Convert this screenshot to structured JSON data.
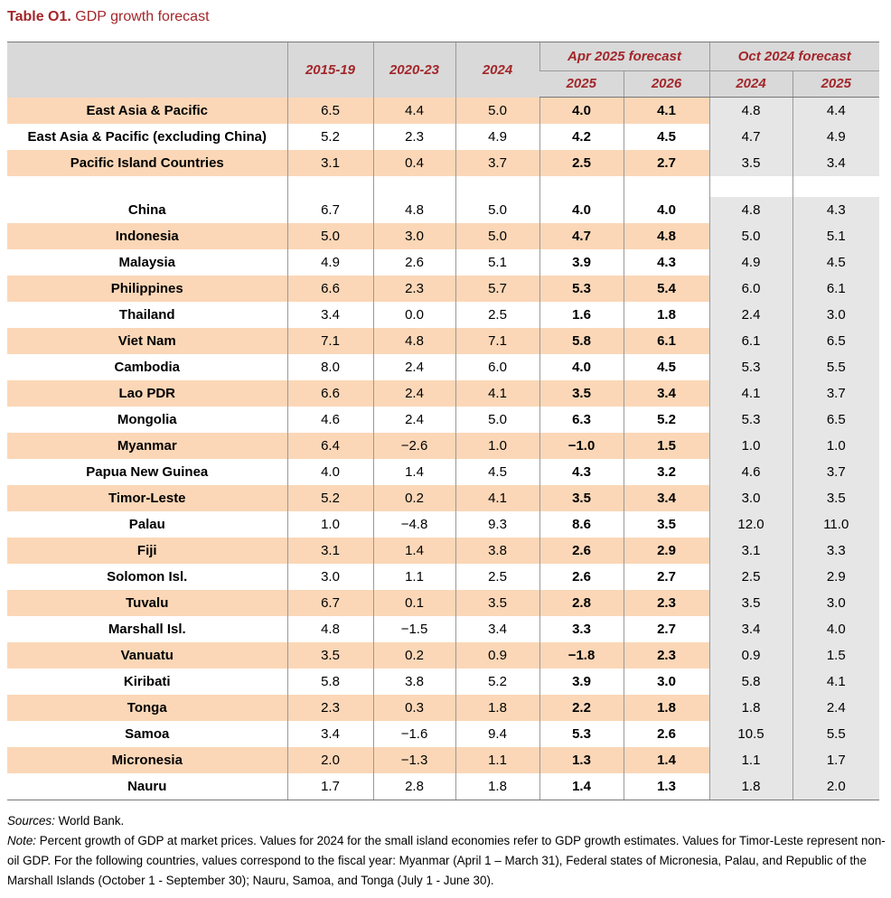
{
  "title": {
    "label": "Table O1.",
    "text": "GDP growth forecast"
  },
  "header": {
    "hist_columns": [
      "2015-19",
      "2020-23",
      "2024"
    ],
    "groups": [
      "Apr 2025 forecast",
      "Oct 2024 forecast"
    ],
    "apr_years": [
      "2025",
      "2026"
    ],
    "oct_years": [
      "2024",
      "2025"
    ]
  },
  "regions": [
    {
      "name": "East Asia & Pacific",
      "v": [
        "6.5",
        "4.4",
        "5.0",
        "4.0",
        "4.1",
        "4.8",
        "4.4"
      ]
    },
    {
      "name": "East Asia & Pacific (excluding China)",
      "v": [
        "5.2",
        "2.3",
        "4.9",
        "4.2",
        "4.5",
        "4.7",
        "4.9"
      ]
    },
    {
      "name": "Pacific Island Countries",
      "v": [
        "3.1",
        "0.4",
        "3.7",
        "2.5",
        "2.7",
        "3.5",
        "3.4"
      ]
    }
  ],
  "countries": [
    {
      "name": "China",
      "v": [
        "6.7",
        "4.8",
        "5.0",
        "4.0",
        "4.0",
        "4.8",
        "4.3"
      ]
    },
    {
      "name": "Indonesia",
      "v": [
        "5.0",
        "3.0",
        "5.0",
        "4.7",
        "4.8",
        "5.0",
        "5.1"
      ]
    },
    {
      "name": "Malaysia",
      "v": [
        "4.9",
        "2.6",
        "5.1",
        "3.9",
        "4.3",
        "4.9",
        "4.5"
      ]
    },
    {
      "name": "Philippines",
      "v": [
        "6.6",
        "2.3",
        "5.7",
        "5.3",
        "5.4",
        "6.0",
        "6.1"
      ]
    },
    {
      "name": "Thailand",
      "v": [
        "3.4",
        "0.0",
        "2.5",
        "1.6",
        "1.8",
        "2.4",
        "3.0"
      ]
    },
    {
      "name": "Viet Nam",
      "v": [
        "7.1",
        "4.8",
        "7.1",
        "5.8",
        "6.1",
        "6.1",
        "6.5"
      ]
    },
    {
      "name": "Cambodia",
      "v": [
        "8.0",
        "2.4",
        "6.0",
        "4.0",
        "4.5",
        "5.3",
        "5.5"
      ]
    },
    {
      "name": "Lao PDR",
      "v": [
        "6.6",
        "2.4",
        "4.1",
        "3.5",
        "3.4",
        "4.1",
        "3.7"
      ]
    },
    {
      "name": "Mongolia",
      "v": [
        "4.6",
        "2.4",
        "5.0",
        "6.3",
        "5.2",
        "5.3",
        "6.5"
      ]
    },
    {
      "name": "Myanmar",
      "v": [
        "6.4",
        "−2.6",
        "1.0",
        "−1.0",
        "1.5",
        "1.0",
        "1.0"
      ]
    },
    {
      "name": "Papua New Guinea",
      "v": [
        "4.0",
        "1.4",
        "4.5",
        "4.3",
        "3.2",
        "4.6",
        "3.7"
      ]
    },
    {
      "name": "Timor-Leste",
      "v": [
        "5.2",
        "0.2",
        "4.1",
        "3.5",
        "3.4",
        "3.0",
        "3.5"
      ]
    },
    {
      "name": "Palau",
      "v": [
        "1.0",
        "−4.8",
        "9.3",
        "8.6",
        "3.5",
        "12.0",
        "11.0"
      ]
    },
    {
      "name": "Fiji",
      "v": [
        "3.1",
        "1.4",
        "3.8",
        "2.6",
        "2.9",
        "3.1",
        "3.3"
      ]
    },
    {
      "name": "Solomon Isl.",
      "v": [
        "3.0",
        "1.1",
        "2.5",
        "2.6",
        "2.7",
        "2.5",
        "2.9"
      ]
    },
    {
      "name": "Tuvalu",
      "v": [
        "6.7",
        "0.1",
        "3.5",
        "2.8",
        "2.3",
        "3.5",
        "3.0"
      ]
    },
    {
      "name": "Marshall Isl.",
      "v": [
        "4.8",
        "−1.5",
        "3.4",
        "3.3",
        "2.7",
        "3.4",
        "4.0"
      ]
    },
    {
      "name": "Vanuatu",
      "v": [
        "3.5",
        "0.2",
        "0.9",
        "−1.8",
        "2.3",
        "0.9",
        "1.5"
      ]
    },
    {
      "name": "Kiribati",
      "v": [
        "5.8",
        "3.8",
        "5.2",
        "3.9",
        "3.0",
        "5.8",
        "4.1"
      ]
    },
    {
      "name": "Tonga",
      "v": [
        "2.3",
        "0.3",
        "1.8",
        "2.2",
        "1.8",
        "1.8",
        "2.4"
      ]
    },
    {
      "name": "Samoa",
      "v": [
        "3.4",
        "−1.6",
        "9.4",
        "5.3",
        "2.6",
        "10.5",
        "5.5"
      ]
    },
    {
      "name": "Micronesia",
      "v": [
        "2.0",
        "−1.3",
        "1.1",
        "1.3",
        "1.4",
        "1.1",
        "1.7"
      ]
    },
    {
      "name": "Nauru",
      "v": [
        "1.7",
        "2.8",
        "1.8",
        "1.4",
        "1.3",
        "1.8",
        "2.0"
      ]
    }
  ],
  "sources": {
    "label": "Sources:",
    "text": " World Bank."
  },
  "note": {
    "label": "Note:",
    "text": " Percent growth of GDP at market prices. Values for 2024 for the small island economies refer to GDP growth estimates. Values for Timor-Leste represent non-oil GDP. For the following countries, values correspond to the fiscal year: Myanmar (April 1 – March 31), Federal states of Micronesia, Palau, and Republic of the Marshall Islands (October 1 - September 30); Nauru, Samoa, and Tonga (July 1 - June 30)."
  },
  "colors": {
    "title_red": "#a3262a",
    "shade_peach": "#fbd7b7",
    "header_gray": "#d9d9d9",
    "oct_gray": "#e6e6e6"
  }
}
